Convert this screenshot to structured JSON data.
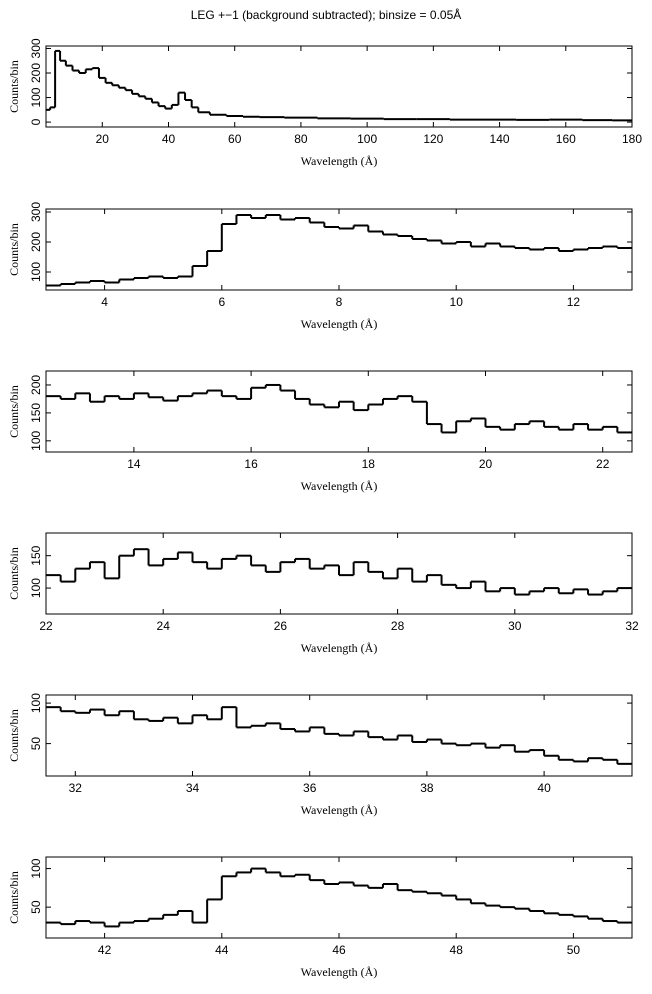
{
  "chart_data": [
    {
      "type": "step",
      "title": "LEG +−1 (background subtracted); binsize = 0.05Å",
      "xlabel": "Wavelength (Å)",
      "ylabel": "Counts/bin",
      "color": "#000000",
      "x": [
        3.5,
        5,
        6.5,
        8,
        10,
        12,
        14,
        16,
        18,
        20,
        22,
        24,
        26,
        28,
        30,
        32,
        34,
        36,
        38,
        40,
        42,
        44,
        46,
        48,
        50,
        55,
        60,
        65,
        70,
        80,
        90,
        100,
        110,
        120,
        130,
        140,
        150,
        160,
        170,
        178
      ],
      "values": [
        50,
        60,
        290,
        250,
        230,
        210,
        200,
        215,
        220,
        180,
        160,
        150,
        140,
        130,
        115,
        105,
        95,
        80,
        65,
        55,
        70,
        120,
        90,
        60,
        40,
        30,
        25,
        22,
        20,
        18,
        15,
        14,
        12,
        12,
        10,
        10,
        9,
        10,
        8,
        7
      ],
      "xlim": [
        3,
        180
      ],
      "xticks": [
        20,
        40,
        60,
        80,
        100,
        120,
        140,
        160,
        180
      ],
      "ylim": [
        -20,
        310
      ],
      "yticks": [
        0,
        100,
        200,
        300
      ]
    },
    {
      "type": "step",
      "xlabel": "Wavelength (Å)",
      "ylabel": "Counts/bin",
      "color": "#000000",
      "x": [
        3.125,
        3.375,
        3.625,
        3.875,
        4.125,
        4.375,
        4.625,
        4.875,
        5.125,
        5.375,
        5.625,
        5.875,
        6.125,
        6.375,
        6.625,
        6.875,
        7.125,
        7.375,
        7.625,
        7.875,
        8.125,
        8.375,
        8.625,
        8.875,
        9.125,
        9.375,
        9.625,
        9.875,
        10.125,
        10.375,
        10.625,
        10.875,
        11.125,
        11.375,
        11.625,
        11.875,
        12.125,
        12.375,
        12.625,
        12.875
      ],
      "values": [
        55,
        60,
        65,
        70,
        65,
        75,
        80,
        85,
        80,
        85,
        120,
        170,
        260,
        290,
        280,
        290,
        275,
        280,
        265,
        250,
        245,
        255,
        235,
        225,
        220,
        210,
        205,
        195,
        200,
        185,
        195,
        185,
        180,
        175,
        180,
        170,
        175,
        180,
        185,
        180
      ],
      "xlim": [
        3,
        13
      ],
      "xticks": [
        4,
        6,
        8,
        10,
        12
      ],
      "ylim": [
        40,
        310
      ],
      "yticks": [
        100,
        200,
        300
      ]
    },
    {
      "type": "step",
      "xlabel": "Wavelength (Å)",
      "ylabel": "Counts/bin",
      "color": "#000000",
      "x": [
        12.625,
        12.875,
        13.125,
        13.375,
        13.625,
        13.875,
        14.125,
        14.375,
        14.625,
        14.875,
        15.125,
        15.375,
        15.625,
        15.875,
        16.125,
        16.375,
        16.625,
        16.875,
        17.125,
        17.375,
        17.625,
        17.875,
        18.125,
        18.375,
        18.625,
        18.875,
        19.125,
        19.375,
        19.625,
        19.875,
        20.125,
        20.375,
        20.625,
        20.875,
        21.125,
        21.375,
        21.625,
        21.875,
        22.125,
        22.375
      ],
      "values": [
        180,
        175,
        185,
        170,
        180,
        175,
        185,
        178,
        172,
        180,
        185,
        190,
        180,
        175,
        195,
        200,
        190,
        175,
        165,
        160,
        170,
        155,
        165,
        175,
        180,
        170,
        130,
        115,
        135,
        140,
        125,
        120,
        130,
        135,
        125,
        120,
        130,
        120,
        125,
        115
      ],
      "xlim": [
        12.5,
        22.5
      ],
      "xticks": [
        14,
        16,
        18,
        20,
        22
      ],
      "ylim": [
        80,
        225
      ],
      "yticks": [
        100,
        150,
        200
      ]
    },
    {
      "type": "step",
      "xlabel": "Wavelength (Å)",
      "ylabel": "Counts/bin",
      "color": "#000000",
      "x": [
        22.125,
        22.375,
        22.625,
        22.875,
        23.125,
        23.375,
        23.625,
        23.875,
        24.125,
        24.375,
        24.625,
        24.875,
        25.125,
        25.375,
        25.625,
        25.875,
        26.125,
        26.375,
        26.625,
        26.875,
        27.125,
        27.375,
        27.625,
        27.875,
        28.125,
        28.375,
        28.625,
        28.875,
        29.125,
        29.375,
        29.625,
        29.875,
        30.125,
        30.375,
        30.625,
        30.875,
        31.125,
        31.375,
        31.625,
        31.875
      ],
      "values": [
        120,
        110,
        130,
        140,
        115,
        150,
        160,
        135,
        145,
        155,
        140,
        130,
        145,
        150,
        135,
        125,
        140,
        145,
        130,
        135,
        120,
        140,
        125,
        115,
        130,
        110,
        120,
        105,
        100,
        110,
        95,
        100,
        90,
        95,
        100,
        92,
        98,
        90,
        95,
        100
      ],
      "xlim": [
        22,
        32
      ],
      "xticks": [
        22,
        24,
        26,
        28,
        30,
        32
      ],
      "ylim": [
        60,
        185
      ],
      "yticks": [
        100,
        150
      ]
    },
    {
      "type": "step",
      "xlabel": "Wavelength (Å)",
      "ylabel": "Counts/bin",
      "color": "#000000",
      "x": [
        31.625,
        31.875,
        32.125,
        32.375,
        32.625,
        32.875,
        33.125,
        33.375,
        33.625,
        33.875,
        34.125,
        34.375,
        34.625,
        34.875,
        35.125,
        35.375,
        35.625,
        35.875,
        36.125,
        36.375,
        36.625,
        36.875,
        37.125,
        37.375,
        37.625,
        37.875,
        38.125,
        38.375,
        38.625,
        38.875,
        39.125,
        39.375,
        39.625,
        39.875,
        40.125,
        40.375,
        40.625,
        40.875,
        41.125,
        41.375
      ],
      "values": [
        95,
        90,
        88,
        92,
        85,
        90,
        80,
        78,
        82,
        75,
        85,
        80,
        95,
        70,
        72,
        75,
        68,
        65,
        70,
        62,
        60,
        65,
        58,
        55,
        60,
        52,
        55,
        50,
        48,
        50,
        45,
        48,
        40,
        42,
        35,
        30,
        28,
        32,
        30,
        25
      ],
      "xlim": [
        31.5,
        41.5
      ],
      "xticks": [
        32,
        34,
        36,
        38,
        40
      ],
      "ylim": [
        10,
        110
      ],
      "yticks": [
        50,
        100
      ]
    },
    {
      "type": "step",
      "xlabel": "Wavelength (Å)",
      "ylabel": "Counts/bin",
      "color": "#000000",
      "x": [
        41.125,
        41.375,
        41.625,
        41.875,
        42.125,
        42.375,
        42.625,
        42.875,
        43.125,
        43.375,
        43.625,
        43.875,
        44.125,
        44.375,
        44.625,
        44.875,
        45.125,
        45.375,
        45.625,
        45.875,
        46.125,
        46.375,
        46.625,
        46.875,
        47.125,
        47.375,
        47.625,
        47.875,
        48.125,
        48.375,
        48.625,
        48.875,
        49.125,
        49.375,
        49.625,
        49.875,
        50.125,
        50.375,
        50.625,
        50.875
      ],
      "values": [
        30,
        28,
        32,
        30,
        25,
        30,
        32,
        35,
        40,
        45,
        30,
        60,
        90,
        95,
        100,
        95,
        90,
        92,
        85,
        80,
        82,
        78,
        75,
        80,
        72,
        70,
        68,
        65,
        60,
        55,
        52,
        50,
        48,
        45,
        42,
        40,
        38,
        35,
        32,
        30
      ],
      "xlim": [
        41,
        51
      ],
      "xticks": [
        42,
        44,
        46,
        48,
        50
      ],
      "ylim": [
        10,
        115
      ],
      "yticks": [
        50,
        100
      ]
    }
  ]
}
